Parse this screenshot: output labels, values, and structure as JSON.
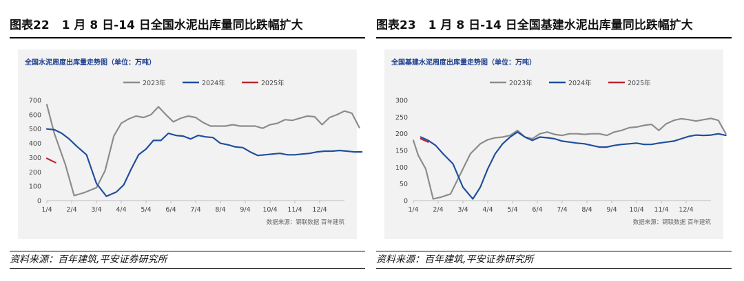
{
  "figures": [
    {
      "fig_number": "图表22",
      "fig_title": "1 月 8 日-14 日全国水泥出库量同比跌幅扩大",
      "source_note": "资料来源：百年建筑,平安证券研究所",
      "chart_data": {
        "type": "line",
        "title": "全国水泥周度出库量走势图（单位：万吨）",
        "source_text": "数据来源：钢联数据 百年建筑",
        "x_ticks": [
          "1/4",
          "2/4",
          "3/4",
          "4/4",
          "5/4",
          "6/4",
          "7/4",
          "8/4",
          "9/4",
          "10/4",
          "11/4",
          "12/4"
        ],
        "ylim": [
          0,
          700
        ],
        "y_ticks": [
          0,
          100,
          200,
          300,
          400,
          500,
          600,
          700
        ],
        "xlabel": "",
        "ylabel": "",
        "series": [
          {
            "name": "2023年",
            "color": "#8c8c8c",
            "x": [
              0.0,
              0.3,
              0.75,
              1.1,
              1.5,
              2.0,
              2.35,
              2.7,
              3.0,
              3.3,
              3.6,
              3.9,
              4.2,
              4.5,
              4.8,
              5.1,
              5.4,
              5.7,
              6.0,
              6.3,
              6.6,
              6.9,
              7.2,
              7.5,
              7.8,
              8.1,
              8.4,
              8.7,
              9.0,
              9.3,
              9.6,
              9.9,
              10.2,
              10.5,
              10.8,
              11.1,
              11.4,
              11.7,
              12.0,
              12.3,
              12.6
            ],
            "values": [
              670,
              470,
              250,
              35,
              55,
              90,
              210,
              450,
              540,
              570,
              590,
              580,
              600,
              655,
              600,
              550,
              575,
              590,
              580,
              545,
              520,
              520,
              520,
              530,
              520,
              520,
              520,
              505,
              530,
              540,
              565,
              560,
              575,
              590,
              585,
              530,
              580,
              600,
              625,
              610,
              510
            ]
          },
          {
            "name": "2024年",
            "color": "#1f4e9c",
            "x": [
              0.0,
              0.3,
              0.6,
              0.9,
              1.2,
              1.6,
              2.0,
              2.4,
              2.8,
              3.1,
              3.4,
              3.7,
              4.0,
              4.3,
              4.6,
              4.9,
              5.2,
              5.5,
              5.8,
              6.1,
              6.4,
              6.7,
              7.0,
              7.3,
              7.6,
              7.9,
              8.2,
              8.5,
              8.8,
              9.1,
              9.4,
              9.7,
              10.0,
              10.3,
              10.6,
              10.9,
              11.2,
              11.5,
              11.8,
              12.1,
              12.4,
              12.7
            ],
            "values": [
              500,
              495,
              470,
              430,
              380,
              320,
              120,
              30,
              60,
              110,
              220,
              320,
              360,
              420,
              420,
              470,
              455,
              450,
              430,
              455,
              445,
              440,
              400,
              390,
              375,
              370,
              340,
              315,
              320,
              325,
              330,
              320,
              320,
              325,
              330,
              340,
              345,
              345,
              350,
              345,
              340,
              340
            ]
          },
          {
            "name": "2025年",
            "color": "#c0262c",
            "x": [
              0.0,
              0.35
            ],
            "values": [
              295,
              265
            ]
          }
        ]
      }
    },
    {
      "fig_number": "图表23",
      "fig_title": "1 月 8 日-14 日全国基建水泥出库量同比跌幅扩大",
      "source_note": "资料来源：百年建筑,平安证券研究所",
      "chart_data": {
        "type": "line",
        "title": "全国基建水泥周度出库量走势图（单位：万吨）",
        "source_text": "数据来源：钢联数据 百年建筑",
        "x_ticks": [
          "1/4",
          "2/4",
          "3/4",
          "4/4",
          "5/4",
          "6/4",
          "7/4",
          "8/4",
          "9/4",
          "10/4",
          "11/4",
          "12/4"
        ],
        "ylim": [
          0,
          300
        ],
        "y_ticks": [
          0,
          50,
          100,
          150,
          200,
          250,
          300
        ],
        "xlabel": "",
        "ylabel": "",
        "series": [
          {
            "name": "2023年",
            "color": "#8c8c8c",
            "x": [
              0.0,
              0.2,
              0.5,
              0.8,
              1.1,
              1.5,
              1.9,
              2.3,
              2.7,
              3.0,
              3.3,
              3.6,
              3.9,
              4.2,
              4.5,
              4.8,
              5.1,
              5.4,
              5.7,
              6.0,
              6.3,
              6.6,
              6.9,
              7.2,
              7.5,
              7.8,
              8.1,
              8.4,
              8.7,
              9.0,
              9.3,
              9.6,
              9.9,
              10.2,
              10.5,
              10.8,
              11.1,
              11.4,
              11.7,
              12.0,
              12.3,
              12.6
            ],
            "values": [
              180,
              135,
              95,
              5,
              10,
              20,
              80,
              140,
              170,
              182,
              188,
              190,
              195,
              210,
              190,
              185,
              200,
              205,
              198,
              195,
              200,
              200,
              198,
              200,
              200,
              195,
              205,
              210,
              218,
              220,
              225,
              228,
              210,
              230,
              240,
              245,
              242,
              238,
              242,
              246,
              240,
              200
            ]
          },
          {
            "name": "2024年",
            "color": "#1f4e9c",
            "x": [
              0.3,
              0.6,
              0.9,
              1.2,
              1.6,
              2.0,
              2.4,
              2.7,
              3.0,
              3.3,
              3.6,
              3.9,
              4.2,
              4.5,
              4.8,
              5.1,
              5.4,
              5.7,
              6.0,
              6.3,
              6.6,
              6.9,
              7.2,
              7.5,
              7.8,
              8.1,
              8.4,
              8.7,
              9.0,
              9.3,
              9.6,
              9.9,
              10.2,
              10.5,
              10.8,
              11.1,
              11.4,
              11.7,
              12.0,
              12.3,
              12.6
            ],
            "values": [
              190,
              180,
              165,
              140,
              110,
              40,
              5,
              40,
              95,
              140,
              170,
              190,
              205,
              190,
              180,
              190,
              188,
              185,
              178,
              175,
              172,
              170,
              165,
              160,
              160,
              165,
              168,
              170,
              172,
              168,
              168,
              172,
              175,
              178,
              185,
              192,
              196,
              195,
              196,
              200,
              195
            ]
          },
          {
            "name": "2025年",
            "color": "#c0262c",
            "x": [
              0.3,
              0.6
            ],
            "values": [
              185,
              175
            ]
          }
        ]
      }
    }
  ]
}
